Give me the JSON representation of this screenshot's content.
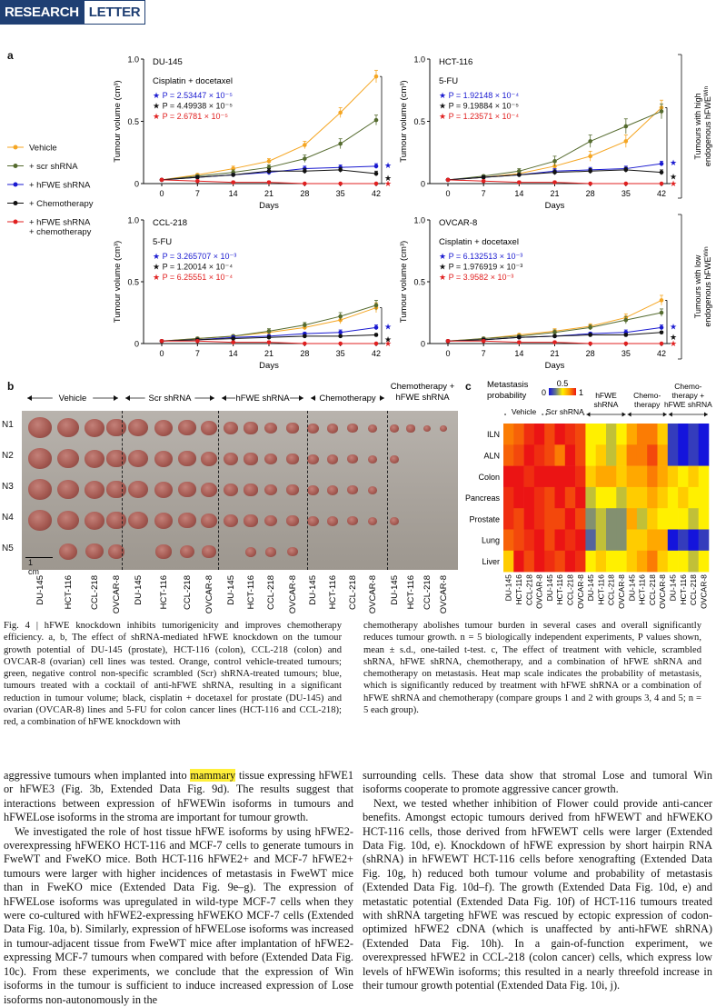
{
  "header": {
    "research": "RESEARCH",
    "letter": "LETTER"
  },
  "panel_a": {
    "letter": "a",
    "legend": [
      {
        "label": "Vehicle",
        "color": "#f5a623"
      },
      {
        "label": "+ scr shRNA",
        "color": "#556b2f"
      },
      {
        "label": "+ hFWE shRNA",
        "color": "#1a1ad0"
      },
      {
        "label": "+ Chemotherapy",
        "color": "#111111"
      },
      {
        "label": "+ hFWE shRNA",
        "label2": "+ chemotherapy",
        "color": "#e02020"
      }
    ],
    "side_labels": {
      "high": "Tumours with high endogenous hFWE",
      "low": "Tumours with low endogenous hFWE",
      "sup": "Win"
    },
    "ylabel": "Tumour volume (cm³)",
    "xlabel": "Days"
  },
  "chart_data": [
    {
      "type": "line",
      "title": "DU-145",
      "treatment": "Cisplatin + docetaxel",
      "pvals": [
        "★ P = 2.53447 × 10⁻⁵",
        "★ P = 4.49938 × 10⁻⁵",
        "★ P = 2.6781 × 10⁻⁵"
      ],
      "x": [
        0,
        7,
        14,
        21,
        28,
        35,
        42
      ],
      "xticks": [
        "0",
        "7",
        "14",
        "21",
        "28",
        "35",
        "42"
      ],
      "yticks": [
        "0",
        "0.5",
        "1.0"
      ],
      "ylim": [
        0,
        1
      ],
      "series": [
        {
          "values": [
            0.03,
            0.07,
            0.12,
            0.18,
            0.31,
            0.57,
            0.86
          ],
          "err": [
            0.01,
            0.01,
            0.02,
            0.02,
            0.03,
            0.04,
            0.05
          ]
        },
        {
          "values": [
            0.03,
            0.06,
            0.09,
            0.13,
            0.2,
            0.32,
            0.51
          ],
          "err": [
            0.01,
            0.01,
            0.02,
            0.02,
            0.03,
            0.04,
            0.04
          ]
        },
        {
          "values": [
            0.03,
            0.05,
            0.07,
            0.09,
            0.12,
            0.13,
            0.14
          ],
          "err": [
            0.01,
            0.01,
            0.01,
            0.02,
            0.02,
            0.02,
            0.02
          ]
        },
        {
          "values": [
            0.03,
            0.05,
            0.07,
            0.1,
            0.1,
            0.11,
            0.08
          ],
          "err": [
            0.01,
            0.01,
            0.01,
            0.02,
            0.02,
            0.02,
            0.02
          ]
        },
        {
          "values": [
            0.03,
            0.02,
            0.01,
            0.01,
            0.0,
            0.0,
            0.0
          ],
          "err": [
            0.01,
            0.01,
            0.01,
            0.01,
            0.0,
            0.0,
            0.0
          ]
        }
      ]
    },
    {
      "type": "line",
      "title": "HCT-116",
      "treatment": "5-FU",
      "pvals": [
        "★ P = 1.92148 × 10⁻⁴",
        "★ P = 9.19884 × 10⁻⁵",
        "★ P = 1.23571 × 10⁻⁴"
      ],
      "x": [
        0,
        7,
        14,
        21,
        28,
        35,
        42
      ],
      "xticks": [
        "0",
        "7",
        "14",
        "21",
        "28",
        "35",
        "42"
      ],
      "yticks": [
        "0",
        "0.5",
        "1.0"
      ],
      "ylim": [
        0,
        1
      ],
      "series": [
        {
          "values": [
            0.03,
            0.05,
            0.08,
            0.14,
            0.22,
            0.34,
            0.61
          ],
          "err": [
            0.01,
            0.01,
            0.02,
            0.03,
            0.04,
            0.05,
            0.06
          ]
        },
        {
          "values": [
            0.03,
            0.06,
            0.1,
            0.18,
            0.34,
            0.46,
            0.58
          ],
          "err": [
            0.01,
            0.01,
            0.02,
            0.04,
            0.05,
            0.06,
            0.06
          ]
        },
        {
          "values": [
            0.03,
            0.05,
            0.07,
            0.1,
            0.11,
            0.12,
            0.16
          ],
          "err": [
            0.01,
            0.01,
            0.01,
            0.02,
            0.02,
            0.02,
            0.02
          ]
        },
        {
          "values": [
            0.03,
            0.05,
            0.07,
            0.09,
            0.1,
            0.11,
            0.09
          ],
          "err": [
            0.01,
            0.01,
            0.01,
            0.02,
            0.02,
            0.02,
            0.02
          ]
        },
        {
          "values": [
            0.03,
            0.02,
            0.01,
            0.01,
            0.0,
            0.0,
            0.0
          ],
          "err": [
            0.01,
            0.01,
            0.01,
            0.01,
            0.0,
            0.0,
            0.0
          ]
        }
      ]
    },
    {
      "type": "line",
      "title": "CCL-218",
      "treatment": "5-FU",
      "pvals": [
        "★ P = 3.265707 × 10⁻³",
        "★ P = 1.20014 × 10⁻⁴",
        "★ P = 6.25551 × 10⁻⁴"
      ],
      "x": [
        0,
        7,
        14,
        21,
        28,
        35,
        42
      ],
      "xticks": [
        "0",
        "7",
        "14",
        "21",
        "28",
        "35",
        "42"
      ],
      "yticks": [
        "0",
        "0.5",
        "1.0"
      ],
      "ylim": [
        0,
        1
      ],
      "series": [
        {
          "values": [
            0.02,
            0.04,
            0.06,
            0.09,
            0.13,
            0.19,
            0.29
          ],
          "err": [
            0.01,
            0.01,
            0.01,
            0.02,
            0.02,
            0.03,
            0.04
          ]
        },
        {
          "values": [
            0.02,
            0.04,
            0.06,
            0.1,
            0.15,
            0.22,
            0.31
          ],
          "err": [
            0.01,
            0.01,
            0.01,
            0.02,
            0.02,
            0.03,
            0.04
          ]
        },
        {
          "values": [
            0.02,
            0.03,
            0.05,
            0.06,
            0.08,
            0.09,
            0.13
          ],
          "err": [
            0.01,
            0.01,
            0.01,
            0.01,
            0.01,
            0.02,
            0.02
          ]
        },
        {
          "values": [
            0.02,
            0.03,
            0.04,
            0.05,
            0.06,
            0.06,
            0.07
          ],
          "err": [
            0.01,
            0.01,
            0.01,
            0.01,
            0.01,
            0.01,
            0.01
          ]
        },
        {
          "values": [
            0.02,
            0.02,
            0.01,
            0.01,
            0.0,
            0.0,
            0.0
          ],
          "err": [
            0.01,
            0.01,
            0.01,
            0.01,
            0.0,
            0.0,
            0.0
          ]
        }
      ]
    },
    {
      "type": "line",
      "title": "OVCAR-8",
      "treatment": "Cisplatin + docetaxel",
      "pvals": [
        "★ P = 6.132513 × 10⁻³",
        "★ P = 1.976919 × 10⁻³",
        "★ P = 3.9582 × 10⁻³"
      ],
      "x": [
        0,
        7,
        14,
        21,
        28,
        35,
        42
      ],
      "xticks": [
        "0",
        "7",
        "14",
        "21",
        "28",
        "35",
        "42"
      ],
      "yticks": [
        "0",
        "0.5",
        "1.0"
      ],
      "ylim": [
        0,
        1
      ],
      "series": [
        {
          "values": [
            0.02,
            0.04,
            0.07,
            0.1,
            0.14,
            0.21,
            0.35
          ],
          "err": [
            0.01,
            0.01,
            0.01,
            0.02,
            0.02,
            0.03,
            0.04
          ]
        },
        {
          "values": [
            0.02,
            0.04,
            0.06,
            0.09,
            0.13,
            0.19,
            0.25
          ],
          "err": [
            0.01,
            0.01,
            0.01,
            0.02,
            0.02,
            0.03,
            0.03
          ]
        },
        {
          "values": [
            0.02,
            0.03,
            0.05,
            0.06,
            0.08,
            0.09,
            0.13
          ],
          "err": [
            0.01,
            0.01,
            0.01,
            0.01,
            0.01,
            0.02,
            0.02
          ]
        },
        {
          "values": [
            0.02,
            0.03,
            0.05,
            0.06,
            0.07,
            0.07,
            0.09
          ],
          "err": [
            0.01,
            0.01,
            0.01,
            0.01,
            0.01,
            0.01,
            0.01
          ]
        },
        {
          "values": [
            0.02,
            0.02,
            0.01,
            0.01,
            0.0,
            0.0,
            0.0
          ],
          "err": [
            0.01,
            0.01,
            0.01,
            0.01,
            0.0,
            0.0,
            0.0
          ]
        }
      ]
    },
    {
      "type": "heatmap",
      "title": "Metastasis probability",
      "scale_labels": [
        "0",
        "0.5",
        "1.0"
      ],
      "groups": [
        "Vehicle",
        "Scr shRNA",
        "hFWE shRNA",
        "Chemo-therapy",
        "Chemo-therapy + hFWE shRNA"
      ],
      "rows": [
        "ILN",
        "ALN",
        "Colon",
        "Pancreas",
        "Prostate",
        "Lung",
        "Liver"
      ],
      "columns": [
        "DU-145",
        "HCT-116",
        "CCL-218",
        "OVCAR-8",
        "DU-145",
        "HCT-116",
        "CCL-218",
        "OVCAR-8",
        "DU-145",
        "HCT-116",
        "CCL-218",
        "OVCAR-8",
        "DU-145",
        "HCT-116",
        "CCL-218",
        "OVCAR-8",
        "DU-145",
        "HCT-116",
        "CCL-218",
        "OVCAR-8"
      ],
      "values": [
        [
          0.8,
          0.85,
          0.95,
          1.0,
          0.9,
          1.0,
          0.95,
          0.9,
          0.5,
          0.5,
          0.4,
          0.5,
          0.7,
          0.8,
          0.8,
          0.6,
          0.1,
          0.0,
          0.1,
          0.0
        ],
        [
          0.85,
          0.9,
          1.0,
          0.95,
          0.9,
          0.8,
          1.0,
          0.9,
          0.5,
          0.6,
          0.4,
          0.6,
          0.8,
          0.8,
          0.9,
          0.7,
          0.1,
          0.0,
          0.1,
          0.0
        ],
        [
          1.0,
          1.0,
          0.95,
          1.0,
          1.0,
          1.0,
          1.0,
          0.95,
          0.6,
          0.7,
          0.7,
          0.6,
          0.7,
          0.7,
          0.8,
          0.7,
          0.6,
          0.5,
          0.6,
          0.5
        ],
        [
          0.95,
          1.0,
          1.0,
          0.95,
          0.9,
          1.0,
          0.9,
          1.0,
          0.4,
          0.5,
          0.5,
          0.4,
          0.6,
          0.6,
          0.7,
          0.6,
          0.5,
          0.6,
          0.5,
          0.5
        ],
        [
          0.95,
          0.9,
          1.0,
          0.95,
          0.9,
          0.9,
          1.0,
          0.9,
          0.3,
          0.4,
          0.3,
          0.3,
          0.7,
          0.4,
          0.6,
          0.5,
          0.5,
          0.5,
          0.4,
          0.5
        ],
        [
          0.85,
          0.9,
          0.95,
          1.0,
          0.9,
          1.0,
          0.95,
          1.0,
          0.2,
          0.4,
          0.3,
          0.3,
          0.6,
          0.6,
          0.7,
          0.7,
          0.0,
          0.1,
          0.0,
          0.1
        ],
        [
          0.6,
          1.0,
          0.9,
          1.0,
          0.95,
          0.9,
          1.0,
          0.95,
          0.5,
          0.6,
          0.5,
          0.5,
          0.6,
          0.7,
          0.8,
          0.6,
          0.5,
          0.5,
          0.4,
          0.5
        ]
      ]
    }
  ],
  "panel_b": {
    "letter": "b",
    "groups": [
      "Vehicle",
      "Scr shRNA",
      "hFWE shRNA",
      "Chemotherapy",
      "Chemotherapy + hFWE shRNA"
    ],
    "rows": [
      "N1",
      "N2",
      "N3",
      "N4",
      "N5"
    ],
    "scale": "1 cm",
    "columns": [
      "DU-145",
      "HCT-116",
      "CCL-218",
      "OVCAR-8",
      "DU-145",
      "HCT-116",
      "CCL-218",
      "OVCAR-8",
      "DU-145",
      "HCT-116",
      "CCL-218",
      "OVCAR-8",
      "DU-145",
      "HCT-116",
      "CCL-218",
      "OVCAR-8",
      "DU-145",
      "HCT-116",
      "CCL-218",
      "OVCAR-8"
    ]
  },
  "panel_c": {
    "letter": "c"
  },
  "caption": {
    "left": "Fig. 4 | hFWE knockdown inhibits tumorigenicity and improves chemotherapy efficiency. a, b, The effect of shRNA-mediated hFWE knockdown on the tumour growth potential of DU-145 (prostate), HCT-116 (colon), CCL-218 (colon) and OVCAR-8 (ovarian) cell lines was tested. Orange, control vehicle-treated tumours; green, negative control non-specific scrambled (Scr) shRNA-treated tumours; blue, tumours treated with a cocktail of anti-hFWE shRNA, resulting in a significant reduction in tumour volume; black, cisplatin + docetaxel for prostate (DU-145) and ovarian (OVCAR-8) lines and 5-FU for colon cancer lines (HCT-116 and CCL-218); red, a combination of hFWE knockdown with",
    "right": "chemotherapy abolishes tumour burden in several cases and overall significantly reduces tumour growth. n = 5 biologically independent experiments, P values shown, mean ± s.d., one-tailed t-test. c, The effect of treatment with vehicle, scrambled shRNA, hFWE shRNA, chemotherapy, and a combination of hFWE shRNA and chemotherapy on metastasis. Heat map scale indicates the probability of metastasis, which is significantly reduced by treatment with hFWE shRNA or a combination of hFWE shRNA and chemotherapy (compare groups 1 and 2 with groups 3, 4 and 5; n = 5 each group)."
  },
  "body": {
    "left_pre": "aggressive tumours when implanted into ",
    "left_hl": "mammary",
    "left_post": " tissue expressing hFWE1 or hFWE3 (Fig. 3b, Extended Data Fig. 9d). The results suggest that interactions between expression of hFWEWin isoforms in tumours and hFWELose isoforms in the stroma are important for tumour growth.",
    "left_p2": "We investigated the role of host tissue hFWE isoforms by using hFWE2-overexpressing hFWEKO HCT-116 and MCF-7 cells to generate tumours in FweWT and FweKO mice. Both HCT-116 hFWE2+ and MCF-7 hFWE2+ tumours were larger with higher incidences of metastasis in FweWT mice than in FweKO mice (Extended Data Fig. 9e–g). The expression of hFWELose isoforms was upregulated in wild-type MCF-7 cells when they were co-cultured with hFWE2-expressing hFWEKO MCF-7 cells (Extended Data Fig. 10a, b). Similarly, expression of hFWELose isoforms was increased in tumour-adjacent tissue from FweWT mice after implantation of hFWE2-expressing MCF-7 tumours when compared with before (Extended Data Fig. 10c). From these experiments, we conclude that the expression of Win isoforms in the tumour is sufficient to induce increased expression of Lose isoforms non-autonomously in the",
    "right_p1": "surrounding cells. These data show that stromal Lose and tumoral Win isoforms cooperate to promote aggressive cancer growth.",
    "right_p2": "Next, we tested whether inhibition of Flower could provide anti-cancer benefits. Amongst ectopic tumours derived from hFWEWT and hFWEKO HCT-116 cells, those derived from hFWEWT cells were larger (Extended Data Fig. 10d, e). Knockdown of hFWE expression by short hairpin RNA (shRNA) in hFWEWT HCT-116 cells before xenografting (Extended Data Fig. 10g, h) reduced both tumour volume and probability of metastasis (Extended Data Fig. 10d–f). The growth (Extended Data Fig. 10d, e) and metastatic potential (Extended Data Fig. 10f) of HCT-116 tumours treated with shRNA targeting hFWE was rescued by ectopic expression of codon-optimized hFWE2 cDNA (which is unaffected by anti-hFWE shRNA) (Extended Data Fig. 10h). In a gain-of-function experiment, we overexpressed hFWE2 in CCL-218 (colon cancer) cells, which express low levels of hFWEWin isoforms; this resulted in a nearly threefold increase in their tumour growth potential (Extended Data Fig. 10i, j)."
  }
}
